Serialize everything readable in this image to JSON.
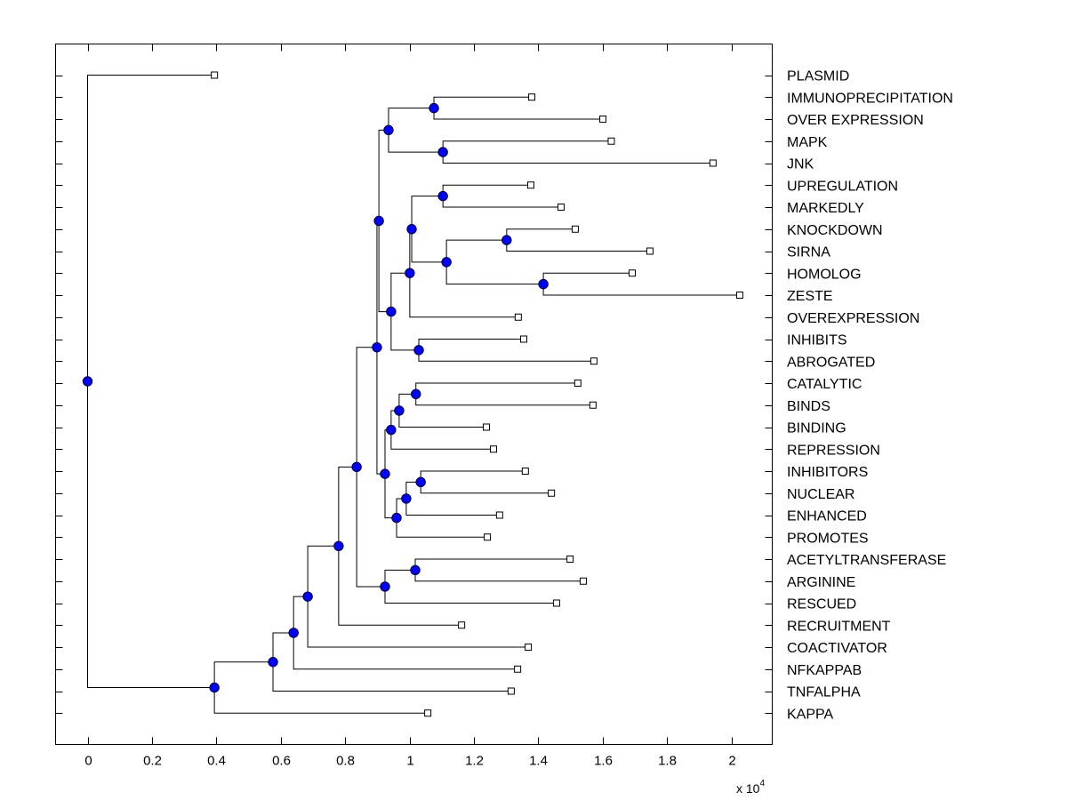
{
  "chart_data": {
    "type": "dendrogram",
    "title": "",
    "xlabel": "",
    "ylabel": "",
    "x_multiplier_label": "x 10",
    "x_multiplier_exponent": "4",
    "xlim": [
      -0.1,
      2.13
    ],
    "xticks": [
      0,
      0.2,
      0.4,
      0.6,
      0.8,
      1,
      1.2,
      1.4,
      1.6,
      1.8,
      2
    ],
    "xtick_labels": [
      "0",
      "0.2",
      "0.4",
      "0.6",
      "0.8",
      "1",
      "1.2",
      "1.4",
      "1.6",
      "1.8",
      "2"
    ],
    "grid": false,
    "colors": {
      "node_fill": "#0000ff",
      "line": "#000000",
      "leaf_fill": "#ffffff"
    },
    "leaves": [
      {
        "id": "PLASMID",
        "label": "PLASMID",
        "x": 0.394
      },
      {
        "id": "IMMUNOPRECIPITATION",
        "label": "IMMUNOPRECIPITATION",
        "x": 1.38
      },
      {
        "id": "OVER_EXPRESSION",
        "label": "OVER EXPRESSION",
        "x": 1.601
      },
      {
        "id": "MAPK",
        "label": "MAPK",
        "x": 1.627
      },
      {
        "id": "JNK",
        "label": "JNK",
        "x": 1.943
      },
      {
        "id": "UPREGULATION",
        "label": "UPREGULATION",
        "x": 1.377
      },
      {
        "id": "MARKEDLY",
        "label": "MARKEDLY",
        "x": 1.471
      },
      {
        "id": "KNOCKDOWN",
        "label": "KNOCKDOWN",
        "x": 1.515
      },
      {
        "id": "SIRNA",
        "label": "SIRNA",
        "x": 1.747
      },
      {
        "id": "HOMOLOG",
        "label": "HOMOLOG",
        "x": 1.692
      },
      {
        "id": "ZESTE",
        "label": "ZESTE",
        "x": 2.026
      },
      {
        "id": "OVEREXPRESSION",
        "label": "OVEREXPRESSION",
        "x": 1.338
      },
      {
        "id": "INHIBITS",
        "label": "INHIBITS",
        "x": 1.355
      },
      {
        "id": "ABROGATED",
        "label": "ABROGATED",
        "x": 1.573
      },
      {
        "id": "CATALYTIC",
        "label": "CATALYTIC",
        "x": 1.523
      },
      {
        "id": "BINDS",
        "label": "BINDS",
        "x": 1.57
      },
      {
        "id": "BINDING",
        "label": "BINDING",
        "x": 1.239
      },
      {
        "id": "REPRESSION",
        "label": "REPRESSION",
        "x": 1.261
      },
      {
        "id": "INHIBITORS",
        "label": "INHIBITORS",
        "x": 1.36
      },
      {
        "id": "NUCLEAR",
        "label": "NUCLEAR",
        "x": 1.441
      },
      {
        "id": "ENHANCED",
        "label": "ENHANCED",
        "x": 1.28
      },
      {
        "id": "PROMOTES",
        "label": "PROMOTES",
        "x": 1.242
      },
      {
        "id": "ACETYLTRANSFERASE",
        "label": "ACETYLTRANSFERASE",
        "x": 1.499
      },
      {
        "id": "ARGININE",
        "label": "ARGININE",
        "x": 1.54
      },
      {
        "id": "RESCUED",
        "label": "RESCUED",
        "x": 1.457
      },
      {
        "id": "RECRUITMENT",
        "label": "RECRUITMENT",
        "x": 1.162
      },
      {
        "id": "COACTIVATOR",
        "label": "COACTIVATOR",
        "x": 1.369
      },
      {
        "id": "NFKAPPAB",
        "label": "NFKAPPAB",
        "x": 1.336
      },
      {
        "id": "TNFALPHA",
        "label": "TNFALPHA",
        "x": 1.316
      },
      {
        "id": "KAPPA",
        "label": "KAPPA",
        "x": 1.057
      }
    ],
    "nodes": [
      {
        "id": "n_immuno",
        "x": 1.076,
        "children": [
          "IMMUNOPRECIPITATION",
          "OVER_EXPRESSION"
        ]
      },
      {
        "id": "n_mapk",
        "x": 1.104,
        "children": [
          "MAPK",
          "JNK"
        ]
      },
      {
        "id": "n_top4",
        "x": 0.935,
        "children": [
          "n_immuno",
          "n_mapk"
        ]
      },
      {
        "id": "n_upreg",
        "x": 1.104,
        "children": [
          "UPREGULATION",
          "MARKEDLY"
        ]
      },
      {
        "id": "n_knock",
        "x": 1.302,
        "children": [
          "KNOCKDOWN",
          "SIRNA"
        ]
      },
      {
        "id": "n_homolog",
        "x": 1.416,
        "children": [
          "HOMOLOG",
          "ZESTE"
        ]
      },
      {
        "id": "n_kh",
        "x": 1.115,
        "children": [
          "n_knock",
          "n_homolog"
        ]
      },
      {
        "id": "n_uk",
        "x": 1.007,
        "children": [
          "n_upreg",
          "n_kh"
        ]
      },
      {
        "id": "n_uko",
        "x": 1.001,
        "children": [
          "n_uk",
          "OVEREXPRESSION"
        ]
      },
      {
        "id": "n_inhibits",
        "x": 1.029,
        "children": [
          "INHIBITS",
          "ABROGATED"
        ]
      },
      {
        "id": "n_mid",
        "x": 0.943,
        "children": [
          "n_uko",
          "n_inhibits"
        ]
      },
      {
        "id": "n_upper",
        "x": 0.905,
        "children": [
          "n_top4",
          "n_mid"
        ]
      },
      {
        "id": "n_catalytic",
        "x": 1.02,
        "children": [
          "CATALYTIC",
          "BINDS"
        ]
      },
      {
        "id": "n_cb",
        "x": 0.968,
        "children": [
          "n_catalytic",
          "BINDING"
        ]
      },
      {
        "id": "n_cbr",
        "x": 0.943,
        "children": [
          "n_cb",
          "REPRESSION"
        ]
      },
      {
        "id": "n_inhibitors",
        "x": 1.035,
        "children": [
          "INHIBITORS",
          "NUCLEAR"
        ]
      },
      {
        "id": "n_ine",
        "x": 0.99,
        "children": [
          "n_inhibitors",
          "ENHANCED"
        ]
      },
      {
        "id": "n_inep",
        "x": 0.96,
        "children": [
          "n_ine",
          "PROMOTES"
        ]
      },
      {
        "id": "n_lower",
        "x": 0.924,
        "children": [
          "n_cbr",
          "n_inep"
        ]
      },
      {
        "id": "n_core",
        "x": 0.899,
        "children": [
          "n_upper",
          "n_lower"
        ]
      },
      {
        "id": "n_acetyl",
        "x": 1.018,
        "children": [
          "ACETYLTRANSFERASE",
          "ARGININE"
        ]
      },
      {
        "id": "n_rescued",
        "x": 0.924,
        "children": [
          "n_acetyl",
          "RESCUED"
        ]
      },
      {
        "id": "n_core2",
        "x": 0.836,
        "children": [
          "n_core",
          "n_rescued"
        ]
      },
      {
        "id": "n_recruit",
        "x": 0.78,
        "children": [
          "n_core2",
          "RECRUITMENT"
        ]
      },
      {
        "id": "n_coact",
        "x": 0.684,
        "children": [
          "n_recruit",
          "COACTIVATOR"
        ]
      },
      {
        "id": "n_nfk",
        "x": 0.64,
        "children": [
          "n_coact",
          "NFKAPPAB"
        ]
      },
      {
        "id": "n_tnf",
        "x": 0.576,
        "children": [
          "n_nfk",
          "TNFALPHA"
        ]
      },
      {
        "id": "n_kappa",
        "x": 0.394,
        "children": [
          "n_tnf",
          "KAPPA"
        ]
      },
      {
        "id": "root",
        "x": 0.0,
        "children": [
          "PLASMID",
          "n_kappa"
        ]
      }
    ]
  }
}
